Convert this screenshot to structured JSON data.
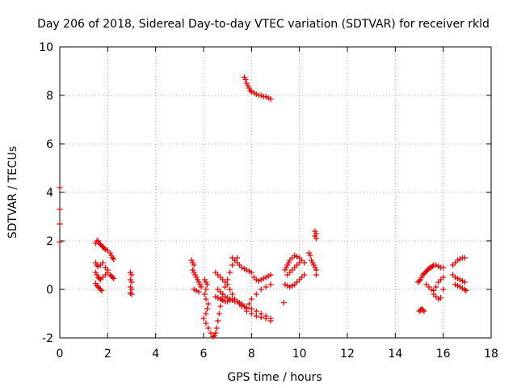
{
  "chart_data": {
    "type": "scatter",
    "title": "Day 206 of 2018, Sidereal Day-to-day VTEC variation (SDTVAR) for receiver rkld",
    "xlabel": "GPS time / hours",
    "ylabel": "SDTVAR / TECUs",
    "xlim": [
      0,
      18
    ],
    "ylim": [
      -2,
      10
    ],
    "xticks": [
      "0",
      "2",
      "4",
      "6",
      "8",
      "10",
      "12",
      "14",
      "16",
      "18"
    ],
    "yticks": [
      "-2",
      "0",
      "2",
      "4",
      "6",
      "8",
      "10"
    ],
    "grid": true,
    "marker": "plus",
    "color": "#e60000",
    "series": [
      {
        "name": "SDTVAR",
        "x": [
          0.0,
          0.0,
          0.0,
          0.0,
          1.5,
          1.55,
          1.6,
          1.65,
          1.7,
          1.75,
          1.8,
          1.85,
          1.9,
          2.0,
          2.1,
          2.15,
          2.2,
          2.25,
          1.5,
          1.55,
          1.6,
          1.7,
          1.8,
          1.9,
          2.0,
          1.5,
          1.55,
          1.6,
          1.65,
          1.7,
          1.8,
          1.9,
          2.0,
          1.5,
          1.55,
          1.6,
          1.65,
          1.7,
          1.75,
          2.1,
          2.15,
          2.2,
          2.25,
          2.95,
          3.0,
          2.95,
          3.0,
          2.95,
          3.0,
          2.95,
          3.0,
          5.5,
          5.55,
          5.6,
          5.55,
          5.6,
          5.65,
          5.7,
          5.75,
          5.8,
          5.85,
          5.9,
          5.6,
          5.7,
          5.8,
          6.05,
          6.1,
          6.15,
          6.1,
          6.05,
          6.1,
          6.2,
          6.15,
          6.1,
          6.0,
          6.1,
          6.2,
          6.3,
          6.4,
          6.45,
          6.5,
          6.55,
          6.6,
          6.65,
          6.7,
          6.75,
          6.8,
          6.9,
          7.0,
          7.1,
          7.2,
          7.3,
          7.4,
          6.5,
          6.6,
          6.7,
          6.8,
          6.9,
          7.0,
          7.1,
          7.2,
          7.3,
          7.4,
          7.5,
          7.6,
          7.7,
          7.8,
          8.0,
          8.2,
          8.4,
          8.6,
          8.8,
          6.6,
          6.7,
          6.8,
          6.9,
          7.0,
          7.1,
          7.2,
          7.3,
          7.4,
          7.5,
          7.6,
          7.7,
          7.8,
          7.9,
          8.0,
          8.2,
          8.4,
          8.6,
          8.8,
          6.5,
          6.6,
          6.7,
          6.8,
          6.9,
          7.0,
          7.1,
          7.2,
          7.4,
          7.6,
          7.8,
          8.0,
          8.2,
          8.4,
          8.6,
          8.8,
          7.2,
          7.3,
          7.4,
          7.5,
          7.6,
          7.7,
          7.8,
          7.9,
          8.0,
          8.1,
          8.2,
          8.3,
          8.4,
          8.5,
          8.6,
          8.7,
          8.8,
          7.7,
          7.75,
          7.8,
          7.85,
          7.9,
          7.95,
          8.0,
          8.1,
          8.2,
          8.3,
          8.4,
          8.5,
          8.6,
          8.7,
          8.8,
          9.4,
          9.45,
          9.5,
          9.55,
          9.6,
          9.7,
          9.8,
          9.9,
          10.0,
          10.1,
          10.2,
          9.5,
          9.6,
          9.7,
          9.8,
          9.9,
          10.0,
          9.4,
          9.5,
          9.6,
          9.7,
          9.8,
          9.9,
          10.0,
          10.1,
          10.2,
          10.4,
          10.45,
          10.5,
          10.55,
          10.6,
          10.65,
          10.7,
          10.65,
          10.7,
          10.65,
          10.7,
          10.7,
          9.35,
          14.95,
          15.0,
          15.05,
          15.1,
          15.15,
          15.2,
          15.25,
          15.3,
          15.35,
          15.4,
          15.45,
          15.5,
          15.55,
          15.6,
          15.7,
          15.8,
          15.9,
          16.0,
          15.0,
          15.05,
          15.1,
          15.15,
          15.2,
          15.3,
          15.4,
          15.5,
          15.6,
          15.7,
          15.8,
          15.9,
          16.0,
          15.6,
          15.7,
          15.8,
          15.9,
          16.0,
          16.4,
          16.5,
          16.6,
          16.7,
          16.8,
          16.9,
          16.4,
          16.5,
          16.6,
          16.7,
          16.8,
          16.9,
          16.5,
          16.6,
          16.7,
          16.8,
          16.9,
          16.95
        ],
        "y": [
          4.2,
          3.3,
          2.7,
          1.95,
          1.9,
          2.0,
          2.0,
          1.9,
          1.85,
          1.8,
          1.75,
          1.7,
          1.65,
          1.6,
          1.5,
          1.4,
          1.3,
          1.25,
          1.1,
          1.0,
          0.95,
          1.0,
          1.1,
          0.9,
          0.8,
          0.7,
          0.6,
          0.5,
          0.45,
          0.4,
          0.5,
          0.6,
          0.7,
          0.25,
          0.15,
          0.1,
          0.05,
          0.0,
          -0.05,
          0.6,
          0.55,
          0.5,
          0.45,
          0.7,
          0.6,
          0.4,
          0.3,
          0.1,
          0.0,
          -0.15,
          -0.2,
          1.2,
          1.1,
          1.0,
          0.8,
          0.7,
          0.6,
          0.5,
          0.4,
          0.3,
          0.2,
          0.1,
          0.0,
          -0.05,
          -0.1,
          0.4,
          0.3,
          0.2,
          0.0,
          -0.2,
          -0.4,
          -0.6,
          -0.8,
          -1.0,
          -1.2,
          -1.4,
          -1.6,
          -1.8,
          -1.95,
          -1.9,
          -1.8,
          -1.6,
          -1.3,
          -1.0,
          -0.7,
          -0.4,
          -0.2,
          0.1,
          0.4,
          0.7,
          1.0,
          1.2,
          1.3,
          0.7,
          0.6,
          0.5,
          0.4,
          0.3,
          0.2,
          0.0,
          -0.2,
          -0.4,
          -0.5,
          -0.6,
          -0.65,
          -0.7,
          -0.75,
          -0.8,
          -0.9,
          -1.0,
          -1.1,
          -1.2,
          0.0,
          -0.1,
          -0.2,
          -0.3,
          -0.35,
          -0.4,
          -0.45,
          -0.5,
          -0.5,
          -0.55,
          -0.6,
          -0.7,
          -0.8,
          -0.6,
          -0.4,
          -0.2,
          0.0,
          0.1,
          0.2,
          -0.3,
          -0.35,
          -0.4,
          -0.45,
          -0.5,
          -0.5,
          -0.45,
          -0.4,
          -0.5,
          -0.7,
          -0.9,
          -1.0,
          -1.1,
          -1.15,
          -1.2,
          -1.3,
          1.3,
          1.2,
          1.1,
          1.0,
          0.9,
          0.85,
          0.8,
          0.75,
          0.7,
          0.5,
          0.4,
          0.35,
          0.4,
          0.45,
          0.5,
          0.55,
          0.6,
          8.75,
          8.65,
          8.5,
          8.4,
          8.3,
          8.2,
          8.15,
          8.1,
          8.05,
          8.0,
          8.0,
          7.95,
          7.95,
          7.9,
          7.85,
          0.8,
          0.9,
          1.0,
          1.1,
          1.2,
          1.3,
          1.4,
          1.35,
          1.3,
          1.2,
          1.1,
          0.6,
          0.7,
          0.8,
          0.9,
          1.0,
          1.1,
          0.2,
          0.15,
          0.1,
          0.15,
          0.2,
          0.3,
          0.4,
          0.5,
          0.6,
          1.5,
          1.4,
          1.2,
          1.1,
          1.0,
          0.9,
          0.8,
          2.4,
          2.3,
          2.2,
          2.1,
          0.6,
          -0.55,
          0.3,
          0.35,
          0.4,
          0.5,
          0.6,
          0.65,
          0.7,
          0.75,
          0.8,
          0.85,
          0.9,
          0.9,
          0.95,
          1.0,
          1.0,
          0.95,
          0.9,
          0.9,
          -0.9,
          -0.85,
          -0.8,
          -0.85,
          -0.9,
          0.2,
          0.1,
          0.0,
          -0.05,
          0.1,
          0.3,
          0.4,
          0.5,
          -0.2,
          -0.3,
          -0.4,
          -0.35,
          0.0,
          1.0,
          1.1,
          1.2,
          1.25,
          1.3,
          1.3,
          0.6,
          0.5,
          0.45,
          0.4,
          0.35,
          0.3,
          0.2,
          0.15,
          0.1,
          0.05,
          0.0,
          -0.05
        ]
      }
    ]
  }
}
